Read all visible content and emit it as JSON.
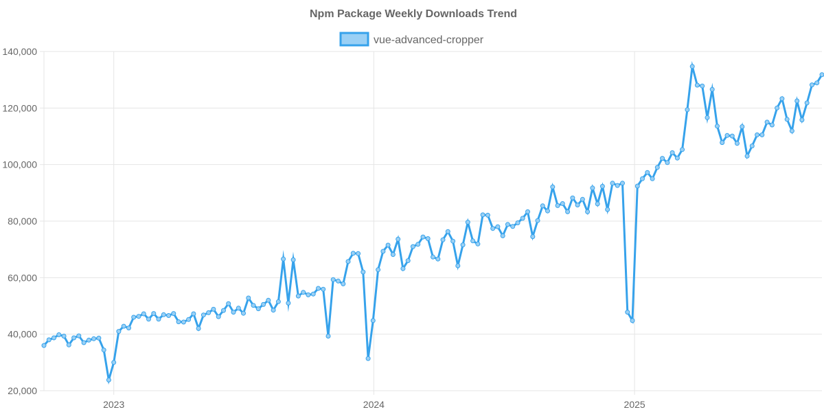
{
  "chart_data": {
    "type": "line",
    "title": "Npm Package Weekly Downloads Trend",
    "xlabel": "",
    "ylabel": "",
    "ylim": [
      20000,
      140000
    ],
    "y_ticks": [
      20000,
      40000,
      60000,
      80000,
      100000,
      120000,
      140000
    ],
    "y_tick_labels": [
      "20,000",
      "40,000",
      "60,000",
      "80,000",
      "100,000",
      "120,000",
      "140,000"
    ],
    "x_ticks": [
      "2023-01-01",
      "2024-01-01",
      "2025-01-01"
    ],
    "x_tick_labels": [
      "2023",
      "2024",
      "2025"
    ],
    "xlim": [
      "2022-09-25",
      "2025-09-21"
    ],
    "grid": true,
    "legend_position": "top-center",
    "colors": {
      "line": "#36a2eb",
      "fill": "#9ad0f5"
    },
    "series": [
      {
        "name": "vue-advanced-cropper",
        "x": [
          "2022-09-25",
          "2022-10-02",
          "2022-10-09",
          "2022-10-16",
          "2022-10-23",
          "2022-10-30",
          "2022-11-06",
          "2022-11-13",
          "2022-11-20",
          "2022-11-27",
          "2022-12-04",
          "2022-12-11",
          "2022-12-18",
          "2022-12-25",
          "2023-01-01",
          "2023-01-08",
          "2023-01-15",
          "2023-01-22",
          "2023-01-29",
          "2023-02-05",
          "2023-02-12",
          "2023-02-19",
          "2023-02-26",
          "2023-03-05",
          "2023-03-12",
          "2023-03-19",
          "2023-03-26",
          "2023-04-02",
          "2023-04-09",
          "2023-04-16",
          "2023-04-23",
          "2023-04-30",
          "2023-05-07",
          "2023-05-14",
          "2023-05-21",
          "2023-05-28",
          "2023-06-04",
          "2023-06-11",
          "2023-06-18",
          "2023-06-25",
          "2023-07-02",
          "2023-07-09",
          "2023-07-16",
          "2023-07-23",
          "2023-07-30",
          "2023-08-06",
          "2023-08-13",
          "2023-08-20",
          "2023-08-27",
          "2023-09-03",
          "2023-09-10",
          "2023-09-17",
          "2023-09-24",
          "2023-10-01",
          "2023-10-08",
          "2023-10-15",
          "2023-10-22",
          "2023-10-29",
          "2023-11-05",
          "2023-11-12",
          "2023-11-19",
          "2023-11-26",
          "2023-12-03",
          "2023-12-10",
          "2023-12-17",
          "2023-12-24",
          "2023-12-31",
          "2024-01-07",
          "2024-01-14",
          "2024-01-21",
          "2024-01-28",
          "2024-02-04",
          "2024-02-11",
          "2024-02-18",
          "2024-02-25",
          "2024-03-03",
          "2024-03-10",
          "2024-03-17",
          "2024-03-24",
          "2024-03-31",
          "2024-04-07",
          "2024-04-14",
          "2024-04-21",
          "2024-04-28",
          "2024-05-05",
          "2024-05-12",
          "2024-05-19",
          "2024-05-26",
          "2024-06-02",
          "2024-06-09",
          "2024-06-16",
          "2024-06-23",
          "2024-06-30",
          "2024-07-07",
          "2024-07-14",
          "2024-07-21",
          "2024-07-28",
          "2024-08-04",
          "2024-08-11",
          "2024-08-18",
          "2024-08-25",
          "2024-09-01",
          "2024-09-08",
          "2024-09-15",
          "2024-09-22",
          "2024-09-29",
          "2024-10-06",
          "2024-10-13",
          "2024-10-20",
          "2024-10-27",
          "2024-11-03",
          "2024-11-10",
          "2024-11-17",
          "2024-11-24",
          "2024-12-01",
          "2024-12-08",
          "2024-12-15",
          "2024-12-22",
          "2024-12-29",
          "2025-01-05",
          "2025-01-12",
          "2025-01-19",
          "2025-01-26",
          "2025-02-02",
          "2025-02-09",
          "2025-02-16",
          "2025-02-23",
          "2025-03-02",
          "2025-03-09",
          "2025-03-16",
          "2025-03-23",
          "2025-03-30",
          "2025-04-06",
          "2025-04-13",
          "2025-04-20",
          "2025-04-27",
          "2025-05-04",
          "2025-05-11",
          "2025-05-18",
          "2025-05-25",
          "2025-06-01",
          "2025-06-08",
          "2025-06-15",
          "2025-06-22",
          "2025-06-29",
          "2025-07-06",
          "2025-07-13",
          "2025-07-20",
          "2025-07-27",
          "2025-08-03",
          "2025-08-10",
          "2025-08-17",
          "2025-08-24",
          "2025-08-31",
          "2025-09-07",
          "2025-09-14",
          "2025-09-21"
        ],
        "values": [
          36000,
          38000,
          38700,
          39800,
          39300,
          36200,
          38700,
          39400,
          37000,
          37900,
          38400,
          38600,
          34400,
          23800,
          30000,
          41000,
          42800,
          42200,
          46000,
          46300,
          47200,
          45300,
          47300,
          45300,
          46900,
          46600,
          47300,
          44400,
          44300,
          45200,
          47200,
          42000,
          46800,
          47600,
          48800,
          46200,
          48400,
          50800,
          47800,
          49200,
          47400,
          52800,
          50200,
          49000,
          50500,
          52000,
          48500,
          51500,
          66600,
          51000,
          66300,
          53500,
          54800,
          53900,
          54200,
          56200,
          55900,
          39300,
          59300,
          58800,
          57800,
          65700,
          68600,
          68500,
          62000,
          31400,
          44800,
          62800,
          69300,
          71500,
          68200,
          73600,
          63200,
          66000,
          71000,
          71800,
          74400,
          73800,
          67300,
          66600,
          73400,
          76300,
          72900,
          64200,
          71600,
          79600,
          73000,
          71900,
          82200,
          82100,
          77400,
          78000,
          74800,
          78800,
          78100,
          79400,
          81000,
          83300,
          74500,
          80200,
          85400,
          83600,
          92100,
          85500,
          86200,
          83300,
          88200,
          85700,
          87700,
          83300,
          91700,
          86100,
          92300,
          84100,
          93400,
          92600,
          93400,
          47800,
          44800,
          92400,
          95000,
          97200,
          95000,
          99000,
          102200,
          100700,
          104200,
          102300,
          105300,
          119400,
          134700,
          128100,
          127800,
          116600,
          126600,
          113600,
          107800,
          110300,
          110100,
          107500,
          113400,
          103000,
          106600,
          110500,
          110500,
          115000,
          114000,
          120000,
          123300,
          116000,
          111900,
          122500,
          115800,
          121800,
          128200,
          128900,
          131800
        ]
      }
    ]
  }
}
